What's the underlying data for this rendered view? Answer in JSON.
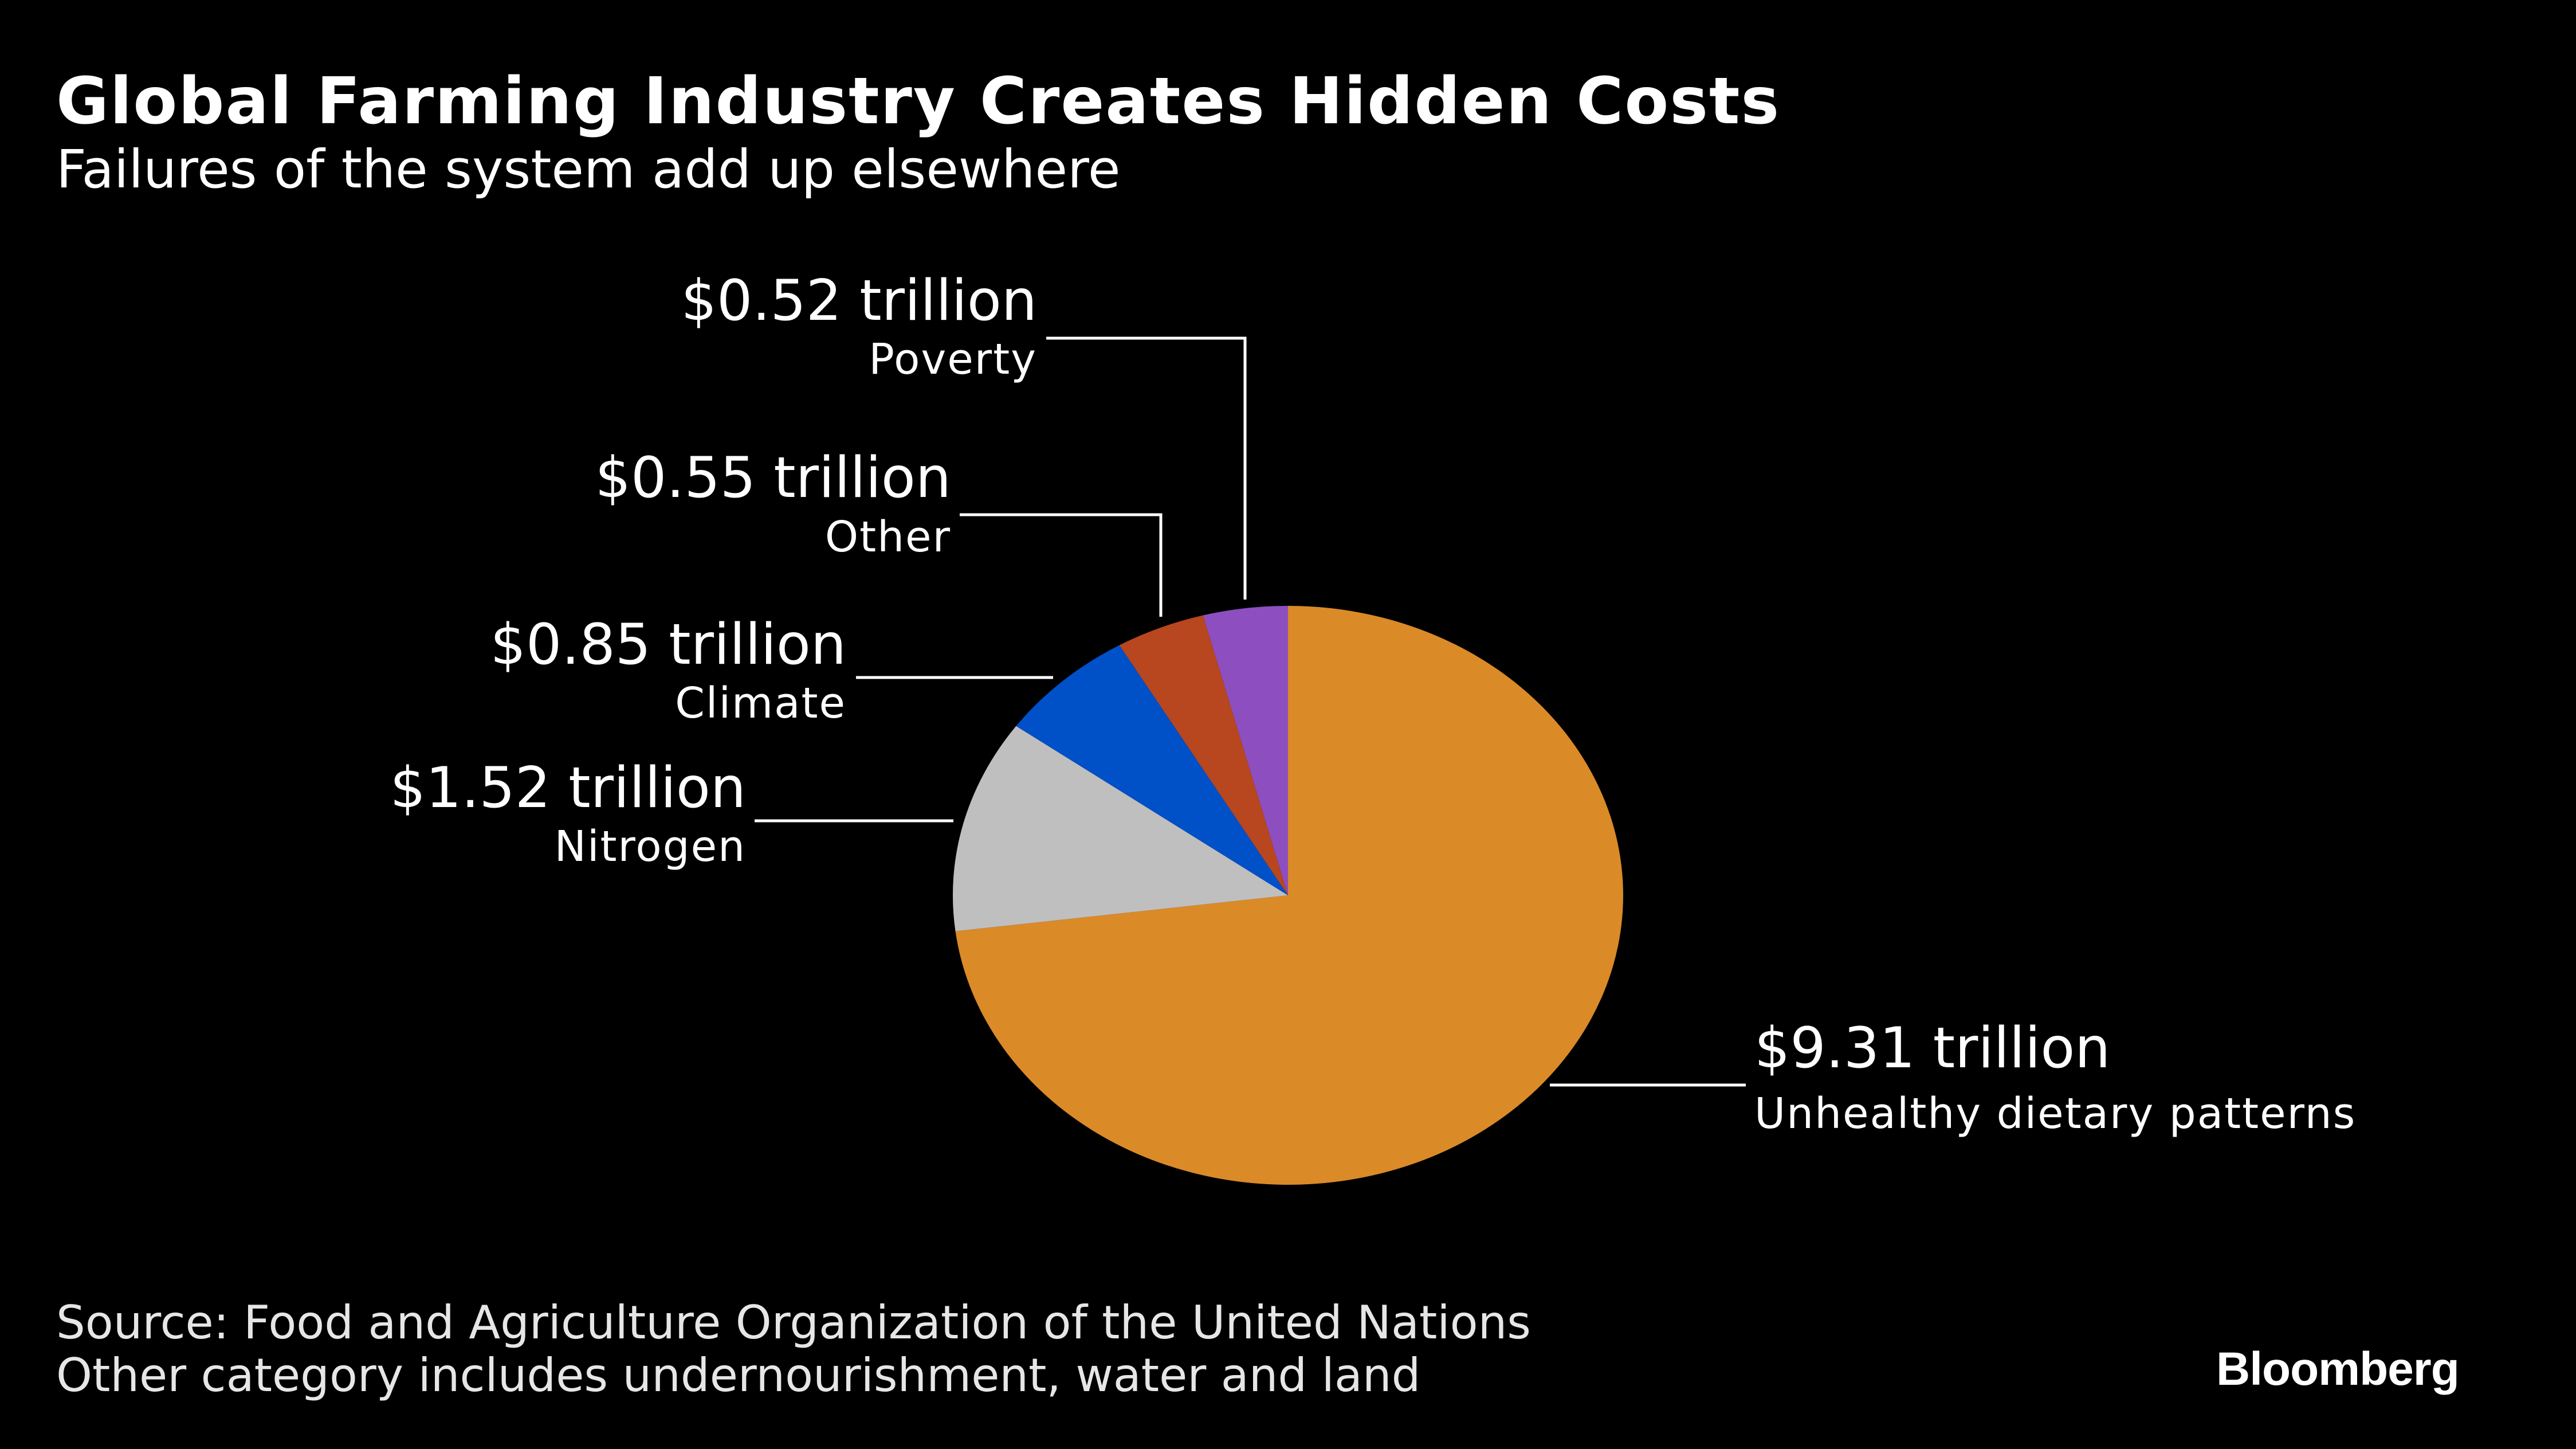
{
  "header": {
    "title": "Global Farming Industry Creates Hidden Costs",
    "subtitle": "Failures of the system add up elsewhere"
  },
  "footer": {
    "source": "Source: Food and Agriculture Organization of the United Nations",
    "note": "Other category includes undernourishment, water and land"
  },
  "brand": {
    "name": "Bloomberg"
  },
  "chart_data": {
    "type": "pie",
    "title": "Global Farming Industry Creates Hidden Costs",
    "subtitle": "Failures of the system add up elsewhere",
    "unit": "trillion",
    "start": "12 o'clock, clockwise",
    "slices": [
      {
        "label": "Unhealthy dietary patterns",
        "value": 9.31,
        "value_label": "$9.31 trillion",
        "color": "#db8a28"
      },
      {
        "label": "Nitrogen",
        "value": 1.52,
        "value_label": "$1.52 trillion",
        "color": "#bfbfbf"
      },
      {
        "label": "Climate",
        "value": 0.85,
        "value_label": "$0.85 trillion",
        "color": "#0050c8"
      },
      {
        "label": "Other",
        "value": 0.55,
        "value_label": "$0.55 trillion",
        "color": "#b8461f"
      },
      {
        "label": "Poverty",
        "value": 0.52,
        "value_label": "$0.52 trillion",
        "color": "#8d4fc0"
      }
    ]
  }
}
